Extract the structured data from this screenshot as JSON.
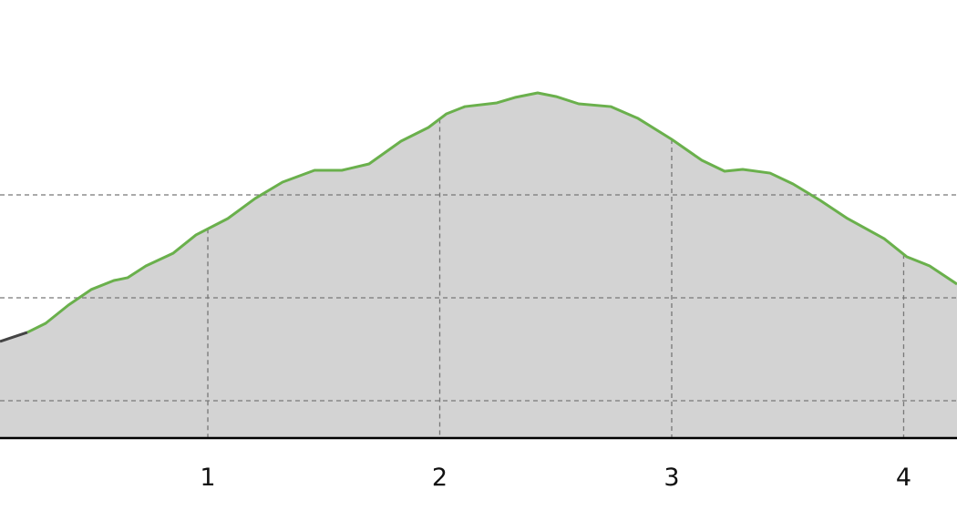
{
  "chart_data": {
    "type": "area",
    "title": "",
    "xlabel": "",
    "ylabel": "",
    "xlim": [
      0.104,
      4.23
    ],
    "ylim": [
      0.637,
      4.894
    ],
    "x_ticks": [
      "1",
      "2",
      "3",
      "4"
    ],
    "y_gridlines": [
      1,
      2,
      3
    ],
    "grid": true,
    "colors": {
      "fill": "#d3d3d3",
      "line": "#6ab04c",
      "line_start": "#444444",
      "grid": "#777777",
      "axis": "#000000"
    },
    "highlight_start_x": 0.222,
    "x": [
      0.104,
      0.222,
      0.301,
      0.399,
      0.497,
      0.595,
      0.654,
      0.733,
      0.851,
      0.949,
      1.086,
      1.204,
      1.322,
      1.46,
      1.578,
      1.695,
      1.833,
      1.951,
      2.029,
      2.108,
      2.246,
      2.324,
      2.422,
      2.501,
      2.599,
      2.737,
      2.855,
      3.0,
      3.13,
      3.228,
      3.306,
      3.424,
      3.523,
      3.64,
      3.758,
      3.916,
      4.014,
      4.112,
      4.23
    ],
    "y": [
      1.575,
      1.664,
      1.752,
      1.929,
      2.08,
      2.168,
      2.195,
      2.31,
      2.434,
      2.611,
      2.77,
      2.965,
      3.124,
      3.239,
      3.239,
      3.301,
      3.522,
      3.655,
      3.788,
      3.858,
      3.894,
      3.947,
      3.991,
      3.956,
      3.885,
      3.858,
      3.743,
      3.54,
      3.336,
      3.23,
      3.248,
      3.212,
      3.106,
      2.947,
      2.77,
      2.575,
      2.398,
      2.31,
      2.133
    ]
  }
}
